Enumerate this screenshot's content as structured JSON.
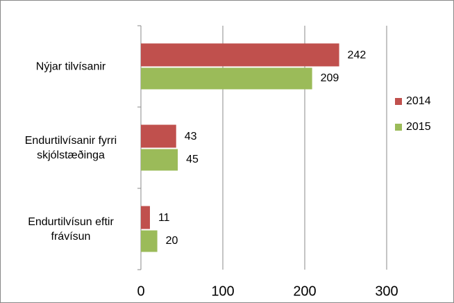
{
  "chart_data": {
    "type": "barh",
    "categories": [
      "Nýjar tilvísanir",
      "Endurtilvísanir fyrri skjólstæðinga",
      "Endurtilvísun eftir frávísun"
    ],
    "series": [
      {
        "name": "2014",
        "color": "#c0504d",
        "values": [
          242,
          43,
          11
        ]
      },
      {
        "name": "2015",
        "color": "#9bbb59",
        "values": [
          209,
          45,
          20
        ]
      }
    ],
    "xlim": [
      0,
      300
    ],
    "xticks": [
      0,
      100,
      200,
      300
    ],
    "grid": true,
    "legend": "right"
  }
}
